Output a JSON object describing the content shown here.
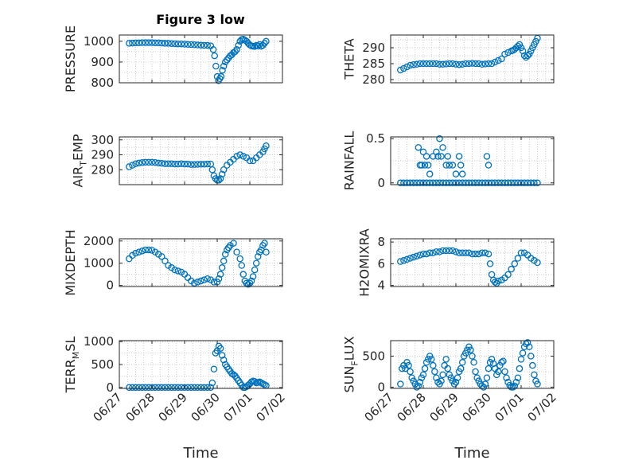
{
  "title": "Figure 3 low",
  "colors": {
    "marker": "#0072bd",
    "axis": "#262626",
    "grid": "#b8b8b8"
  },
  "x_tick_labels": [
    "06/27",
    "06/28",
    "06/29",
    "06/30",
    "07/01",
    "07/02"
  ],
  "x_axis_label": "Time",
  "chart_data": [
    {
      "type": "scatter",
      "ylabel": "PRESSURE",
      "ylim": [
        800,
        1030
      ],
      "yticks": [
        800,
        900,
        1000
      ],
      "xlim": [
        0,
        5
      ],
      "grid": true,
      "x": [
        0.3,
        0.4,
        0.5,
        0.6,
        0.7,
        0.8,
        0.9,
        1.0,
        1.1,
        1.2,
        1.3,
        1.4,
        1.5,
        1.6,
        1.7,
        1.8,
        1.9,
        2.0,
        2.1,
        2.2,
        2.3,
        2.4,
        2.5,
        2.6,
        2.7,
        2.8,
        2.88,
        2.92,
        2.96,
        3.0,
        3.04,
        3.08,
        3.12,
        3.16,
        3.2,
        3.25,
        3.3,
        3.35,
        3.4,
        3.45,
        3.5,
        3.55,
        3.6,
        3.65,
        3.7,
        3.75,
        3.8,
        3.85,
        3.9,
        3.95,
        4.0,
        4.05,
        4.1,
        4.15,
        4.2,
        4.25,
        4.3,
        4.35,
        4.4,
        4.45,
        4.5
      ],
      "y": [
        990,
        991,
        992,
        992,
        993,
        993,
        993,
        993,
        992,
        992,
        991,
        990,
        990,
        989,
        988,
        987,
        987,
        986,
        985,
        984,
        983,
        982,
        981,
        980,
        980,
        978,
        960,
        930,
        880,
        830,
        810,
        820,
        830,
        860,
        880,
        900,
        910,
        920,
        930,
        935,
        945,
        950,
        960,
        980,
        1000,
        1008,
        1010,
        1005,
        1000,
        990,
        982,
        978,
        976,
        975,
        980,
        978,
        984,
        976,
        980,
        990,
        1000
      ]
    },
    {
      "type": "scatter",
      "ylabel": "THETA",
      "ylim": [
        279,
        294
      ],
      "yticks": [
        280,
        285,
        290
      ],
      "xlim": [
        0,
        5
      ],
      "grid": true,
      "x": [
        0.3,
        0.4,
        0.5,
        0.6,
        0.7,
        0.8,
        0.9,
        1.0,
        1.1,
        1.2,
        1.3,
        1.4,
        1.5,
        1.6,
        1.7,
        1.8,
        1.9,
        2.0,
        2.1,
        2.2,
        2.3,
        2.4,
        2.5,
        2.6,
        2.7,
        2.8,
        2.9,
        3.0,
        3.1,
        3.2,
        3.3,
        3.4,
        3.5,
        3.6,
        3.7,
        3.75,
        3.8,
        3.85,
        3.9,
        3.95,
        4.0,
        4.05,
        4.1,
        4.15,
        4.2,
        4.25,
        4.3,
        4.35,
        4.4,
        4.45,
        4.5
      ],
      "y": [
        283,
        283.5,
        284,
        284.5,
        284.7,
        284.8,
        285,
        285,
        285,
        285,
        285,
        285,
        284.8,
        284.8,
        284.9,
        285,
        285,
        284.8,
        284.7,
        284.8,
        285,
        285,
        285.1,
        285,
        285,
        284.8,
        284.9,
        285,
        285,
        285.5,
        286,
        286.5,
        288,
        288.5,
        289,
        289.2,
        289.5,
        290,
        290.5,
        291,
        290,
        289,
        287.5,
        287,
        287.5,
        288,
        289,
        290,
        291,
        292,
        293
      ]
    },
    {
      "type": "scatter",
      "ylabel": "AIR_TEMP",
      "ylim": [
        270,
        302
      ],
      "yticks": [
        280,
        290,
        300
      ],
      "xlim": [
        0,
        5
      ],
      "grid": true,
      "x": [
        0.3,
        0.4,
        0.5,
        0.6,
        0.7,
        0.8,
        0.9,
        1.0,
        1.1,
        1.2,
        1.3,
        1.4,
        1.5,
        1.6,
        1.7,
        1.8,
        1.9,
        2.0,
        2.1,
        2.2,
        2.3,
        2.4,
        2.5,
        2.6,
        2.7,
        2.8,
        2.85,
        2.9,
        2.95,
        3.0,
        3.05,
        3.1,
        3.15,
        3.2,
        3.3,
        3.4,
        3.5,
        3.6,
        3.7,
        3.8,
        3.9,
        4.0,
        4.1,
        4.2,
        4.3,
        4.4,
        4.45,
        4.5
      ],
      "y": [
        282,
        283,
        284,
        284.5,
        284.8,
        285,
        285,
        285,
        284.8,
        284.5,
        284.3,
        284,
        284,
        284,
        283.8,
        283.8,
        284,
        283.8,
        283.8,
        283.5,
        283.5,
        283.6,
        283.7,
        283.7,
        283.8,
        283.8,
        280,
        276,
        274,
        273,
        273,
        274,
        277,
        280,
        283,
        285,
        287,
        289,
        290,
        289,
        288,
        286,
        286,
        288,
        290,
        292,
        294,
        296
      ]
    },
    {
      "type": "scatter",
      "ylabel": "RAINFALL",
      "ylim": [
        -0.02,
        0.52
      ],
      "yticks": [
        0,
        0.5
      ],
      "xlim": [
        0,
        5
      ],
      "grid": true,
      "x": [
        0.3,
        0.4,
        0.5,
        0.6,
        0.7,
        0.8,
        0.9,
        1.0,
        1.1,
        1.2,
        1.3,
        1.4,
        1.5,
        1.6,
        1.7,
        1.8,
        1.9,
        2.0,
        2.1,
        2.2,
        2.3,
        2.4,
        2.5,
        2.6,
        2.7,
        2.8,
        2.9,
        3.0,
        3.1,
        3.2,
        3.3,
        3.4,
        3.5,
        3.6,
        3.7,
        3.8,
        3.9,
        4.0,
        4.1,
        4.2,
        4.3,
        4.4,
        4.5,
        0.85,
        0.9,
        0.95,
        1.0,
        1.05,
        1.1,
        1.15,
        1.2,
        1.3,
        1.4,
        1.45,
        1.5,
        1.55,
        1.6,
        1.7,
        1.75,
        1.8,
        1.9,
        2.0,
        2.1,
        2.15,
        2.2,
        2.95,
        3.0
      ],
      "y": [
        0,
        0,
        0,
        0,
        0,
        0,
        0,
        0,
        0,
        0,
        0,
        0,
        0,
        0,
        0,
        0,
        0,
        0,
        0,
        0,
        0,
        0,
        0,
        0,
        0,
        0,
        0,
        0,
        0,
        0,
        0,
        0,
        0,
        0,
        0,
        0,
        0,
        0,
        0,
        0,
        0,
        0,
        0,
        0.4,
        0.2,
        0.2,
        0.35,
        0.2,
        0.3,
        0.2,
        0.1,
        0.3,
        0.35,
        0.3,
        0.5,
        0.3,
        0.4,
        0.2,
        0.3,
        0.2,
        0.2,
        0.1,
        0.3,
        0.2,
        0.1,
        0.3,
        0.2
      ]
    },
    {
      "type": "scatter",
      "ylabel": "MIXDEPTH",
      "ylim": [
        -50,
        2100
      ],
      "yticks": [
        0,
        1000,
        2000
      ],
      "xlim": [
        0,
        5
      ],
      "grid": true,
      "x": [
        0.3,
        0.4,
        0.5,
        0.6,
        0.7,
        0.8,
        0.9,
        1.0,
        1.1,
        1.2,
        1.3,
        1.4,
        1.5,
        1.6,
        1.7,
        1.8,
        1.9,
        2.0,
        2.1,
        2.2,
        2.3,
        2.4,
        2.5,
        2.6,
        2.7,
        2.8,
        2.9,
        3.0,
        3.05,
        3.1,
        3.15,
        3.2,
        3.25,
        3.3,
        3.35,
        3.4,
        3.5,
        3.6,
        3.7,
        3.75,
        3.8,
        3.85,
        3.9,
        3.95,
        4.0,
        4.05,
        4.1,
        4.15,
        4.2,
        4.25,
        4.3,
        4.35,
        4.4,
        4.45,
        4.5
      ],
      "y": [
        1200,
        1350,
        1450,
        1500,
        1550,
        1600,
        1600,
        1580,
        1500,
        1400,
        1300,
        1100,
        900,
        800,
        700,
        650,
        600,
        500,
        350,
        200,
        100,
        150,
        200,
        250,
        300,
        250,
        150,
        150,
        300,
        500,
        800,
        1100,
        1400,
        1600,
        1700,
        1800,
        1900,
        1500,
        1200,
        900,
        500,
        200,
        100,
        50,
        100,
        200,
        400,
        700,
        1000,
        1300,
        1500,
        1600,
        1800,
        1900,
        1500
      ]
    },
    {
      "type": "scatter",
      "ylabel": "H2OMIXRA",
      "ylim": [
        3.9,
        8.3
      ],
      "yticks": [
        4,
        6,
        8
      ],
      "xlim": [
        0,
        5
      ],
      "grid": true,
      "x": [
        0.3,
        0.4,
        0.5,
        0.6,
        0.7,
        0.8,
        0.9,
        1.0,
        1.1,
        1.2,
        1.3,
        1.4,
        1.5,
        1.6,
        1.7,
        1.8,
        1.9,
        2.0,
        2.1,
        2.2,
        2.3,
        2.4,
        2.5,
        2.6,
        2.7,
        2.8,
        2.9,
        3.0,
        3.05,
        3.1,
        3.15,
        3.2,
        3.25,
        3.3,
        3.4,
        3.5,
        3.6,
        3.7,
        3.8,
        3.9,
        4.0,
        4.1,
        4.2,
        4.3,
        4.4,
        4.5
      ],
      "y": [
        6.2,
        6.3,
        6.4,
        6.5,
        6.6,
        6.7,
        6.8,
        6.9,
        6.9,
        7.0,
        7.0,
        7.1,
        7.1,
        7.2,
        7.2,
        7.2,
        7.2,
        7.1,
        7.0,
        7.0,
        7.0,
        7.0,
        6.9,
        6.9,
        6.9,
        7.0,
        7.0,
        6.9,
        6.0,
        5.0,
        4.5,
        4.3,
        4.2,
        4.4,
        4.5,
        4.7,
        5.0,
        5.5,
        6.0,
        6.5,
        7.0,
        7.0,
        6.8,
        6.5,
        6.3,
        6.1
      ]
    },
    {
      "type": "scatter",
      "ylabel": "TERR_MSL",
      "ylim": [
        -20,
        1020
      ],
      "yticks": [
        0,
        500,
        1000
      ],
      "xlim": [
        0,
        5
      ],
      "grid": true,
      "x": [
        0.3,
        0.4,
        0.5,
        0.6,
        0.7,
        0.8,
        0.9,
        1.0,
        1.1,
        1.2,
        1.3,
        1.4,
        1.5,
        1.6,
        1.7,
        1.8,
        1.9,
        2.0,
        2.1,
        2.2,
        2.3,
        2.4,
        2.5,
        2.6,
        2.7,
        2.8,
        2.85,
        2.9,
        2.95,
        3.0,
        3.05,
        3.1,
        3.15,
        3.2,
        3.25,
        3.3,
        3.35,
        3.4,
        3.45,
        3.5,
        3.55,
        3.6,
        3.65,
        3.7,
        3.75,
        3.8,
        3.85,
        3.9,
        3.95,
        4.0,
        4.05,
        4.1,
        4.15,
        4.2,
        4.25,
        4.3,
        4.35,
        4.4,
        4.45,
        4.5
      ],
      "y": [
        0,
        0,
        0,
        0,
        0,
        0,
        0,
        0,
        0,
        0,
        0,
        0,
        0,
        0,
        0,
        0,
        0,
        0,
        0,
        0,
        0,
        0,
        0,
        0,
        0,
        0,
        100,
        400,
        750,
        800,
        900,
        850,
        700,
        600,
        500,
        450,
        400,
        350,
        300,
        280,
        250,
        200,
        150,
        100,
        50,
        0,
        0,
        20,
        50,
        80,
        120,
        140,
        130,
        100,
        110,
        120,
        100,
        80,
        60,
        40
      ]
    },
    {
      "type": "scatter",
      "ylabel": "SUN_FLUX",
      "ylim": [
        -20,
        750
      ],
      "yticks": [
        0,
        500
      ],
      "xlim": [
        0,
        5
      ],
      "grid": true,
      "x": [
        0.3,
        0.35,
        0.4,
        0.45,
        0.5,
        0.55,
        0.6,
        0.65,
        0.7,
        0.75,
        0.8,
        0.85,
        0.9,
        0.95,
        1.0,
        1.05,
        1.1,
        1.15,
        1.2,
        1.25,
        1.3,
        1.35,
        1.4,
        1.45,
        1.5,
        1.55,
        1.6,
        1.65,
        1.7,
        1.75,
        1.8,
        1.85,
        1.9,
        1.95,
        2.0,
        2.05,
        2.1,
        2.15,
        2.2,
        2.25,
        2.3,
        2.35,
        2.4,
        2.45,
        2.5,
        2.55,
        2.6,
        2.65,
        2.7,
        2.75,
        2.8,
        2.85,
        2.9,
        2.95,
        3.0,
        3.05,
        3.1,
        3.15,
        3.2,
        3.25,
        3.3,
        3.35,
        3.4,
        3.45,
        3.5,
        3.55,
        3.6,
        3.65,
        3.7,
        3.75,
        3.8,
        3.85,
        3.9,
        3.95,
        4.0,
        4.05,
        4.1,
        4.15,
        4.2,
        4.25,
        4.3,
        4.35,
        4.4,
        4.45,
        4.5
      ],
      "y": [
        50,
        300,
        350,
        300,
        400,
        350,
        250,
        150,
        100,
        50,
        0,
        20,
        80,
        150,
        200,
        300,
        400,
        450,
        500,
        450,
        350,
        250,
        150,
        80,
        50,
        100,
        200,
        350,
        450,
        300,
        200,
        150,
        100,
        50,
        80,
        150,
        250,
        300,
        400,
        500,
        550,
        600,
        650,
        600,
        500,
        400,
        250,
        150,
        100,
        50,
        20,
        0,
        50,
        150,
        300,
        400,
        450,
        380,
        300,
        200,
        250,
        350,
        400,
        420,
        250,
        150,
        80,
        30,
        0,
        0,
        20,
        80,
        150,
        300,
        450,
        550,
        650,
        700,
        720,
        650,
        500,
        350,
        200,
        100,
        50
      ]
    }
  ]
}
